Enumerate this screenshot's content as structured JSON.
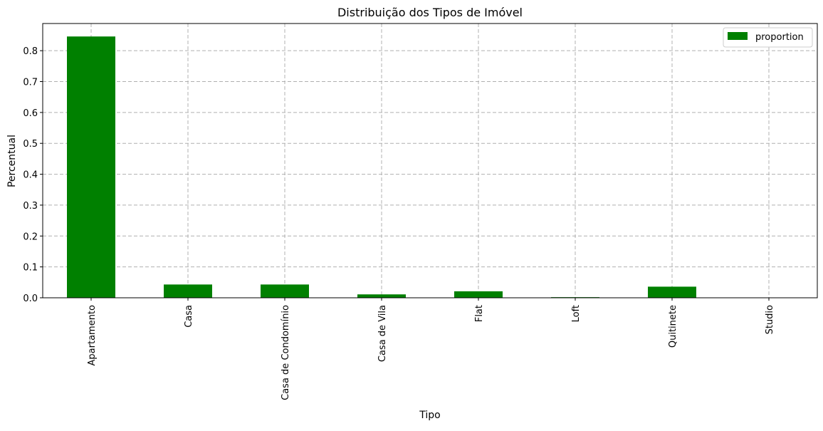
{
  "chart_data": {
    "type": "bar",
    "title": "Distribuição dos Tipos de Imóvel",
    "xlabel": "Tipo",
    "ylabel": "Percentual",
    "categories": [
      "Apartamento",
      "Casa",
      "Casa de Condomínio",
      "Casa de Vila",
      "Flat",
      "Loft",
      "Quitinete",
      "Studio"
    ],
    "series": [
      {
        "name": "proportion",
        "values": [
          0.846,
          0.043,
          0.043,
          0.011,
          0.021,
          0.002,
          0.036,
          0.0
        ]
      }
    ],
    "yticks": [
      "0.0",
      "0.1",
      "0.2",
      "0.3",
      "0.4",
      "0.5",
      "0.6",
      "0.7",
      "0.8"
    ],
    "ylim": [
      0,
      0.888
    ],
    "grid": true,
    "legend_position": "top-right",
    "bar_color": "#008000"
  }
}
